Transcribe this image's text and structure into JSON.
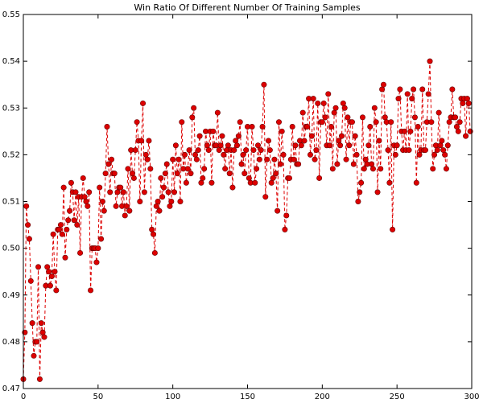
{
  "chart_data": {
    "type": "line",
    "title": "Win Ratio Of Different Number Of Training Samples",
    "xlim": [
      0,
      300
    ],
    "xticks": [
      0,
      50,
      100,
      150,
      200,
      250,
      300
    ],
    "ylim": [
      0.47,
      0.55
    ],
    "yticks": [
      0.47,
      0.48,
      0.49,
      {
        "value": 0.5,
        "label": "0.50"
      },
      0.51,
      0.52,
      0.53,
      0.54,
      0.55
    ],
    "grid": false,
    "x": [
      0,
      1,
      2,
      3,
      4,
      5,
      6,
      7,
      8,
      9,
      10,
      11,
      12,
      13,
      14,
      15,
      16,
      17,
      18,
      19,
      20,
      21,
      22,
      23,
      24,
      25,
      26,
      27,
      28,
      29,
      30,
      31,
      32,
      33,
      34,
      35,
      36,
      37,
      38,
      39,
      40,
      41,
      42,
      43,
      44,
      45,
      46,
      47,
      48,
      49,
      50,
      51,
      52,
      53,
      54,
      55,
      56,
      57,
      58,
      59,
      60,
      61,
      62,
      63,
      64,
      65,
      66,
      67,
      68,
      69,
      70,
      71,
      72,
      73,
      74,
      75,
      76,
      77,
      78,
      79,
      80,
      81,
      82,
      83,
      84,
      85,
      86,
      87,
      88,
      89,
      90,
      91,
      92,
      93,
      94,
      95,
      96,
      97,
      98,
      99,
      100,
      101,
      102,
      103,
      104,
      105,
      106,
      107,
      108,
      109,
      110,
      111,
      112,
      113,
      114,
      115,
      116,
      117,
      118,
      119,
      120,
      121,
      122,
      123,
      124,
      125,
      126,
      127,
      128,
      129,
      130,
      131,
      132,
      133,
      134,
      135,
      136,
      137,
      138,
      139,
      140,
      141,
      142,
      143,
      144,
      145,
      146,
      147,
      148,
      149,
      150,
      151,
      152,
      153,
      154,
      155,
      156,
      157,
      158,
      159,
      160,
      161,
      162,
      163,
      164,
      165,
      166,
      167,
      168,
      169,
      170,
      171,
      172,
      173,
      174,
      175,
      176,
      177,
      178,
      179,
      180,
      181,
      182,
      183,
      184,
      185,
      186,
      187,
      188,
      189,
      190,
      191,
      192,
      193,
      194,
      195,
      196,
      197,
      198,
      199,
      200,
      201,
      202,
      203,
      204,
      205,
      206,
      207,
      208,
      209,
      210,
      211,
      212,
      213,
      214,
      215,
      216,
      217,
      218,
      219,
      220,
      221,
      222,
      223,
      224,
      225,
      226,
      227,
      228,
      229,
      230,
      231,
      232,
      233,
      234,
      235,
      236,
      237,
      238,
      239,
      240,
      241,
      242,
      243,
      244,
      245,
      246,
      247,
      248,
      249,
      250,
      251,
      252,
      253,
      254,
      255,
      256,
      257,
      258,
      259,
      260,
      261,
      262,
      263,
      264,
      265,
      266,
      267,
      268,
      269,
      270,
      271,
      272,
      273,
      274,
      275,
      276,
      277,
      278,
      279,
      280,
      281,
      282,
      283,
      284,
      285,
      286,
      287,
      288,
      289,
      290,
      291,
      292,
      293,
      294,
      295,
      296,
      297,
      298,
      299
    ],
    "series": [
      {
        "color": "#dd0000",
        "values": [
          0.472,
          0.482,
          0.509,
          0.505,
          0.502,
          0.493,
          0.484,
          0.477,
          0.48,
          0.48,
          0.496,
          0.472,
          0.484,
          0.482,
          0.481,
          0.492,
          0.496,
          0.495,
          0.492,
          0.494,
          0.503,
          0.495,
          0.491,
          0.504,
          0.504,
          0.505,
          0.503,
          0.513,
          0.498,
          0.504,
          0.506,
          0.508,
          0.514,
          0.512,
          0.506,
          0.512,
          0.505,
          0.511,
          0.499,
          0.511,
          0.515,
          0.511,
          0.51,
          0.509,
          0.512,
          0.491,
          0.5,
          0.5,
          0.5,
          0.497,
          0.5,
          0.513,
          0.502,
          0.51,
          0.508,
          0.516,
          0.526,
          0.518,
          0.512,
          0.519,
          0.516,
          0.516,
          0.509,
          0.512,
          0.513,
          0.513,
          0.509,
          0.512,
          0.507,
          0.509,
          0.517,
          0.508,
          0.521,
          0.516,
          0.515,
          0.521,
          0.527,
          0.523,
          0.51,
          0.523,
          0.531,
          0.512,
          0.52,
          0.519,
          0.523,
          0.517,
          0.504,
          0.503,
          0.499,
          0.509,
          0.51,
          0.508,
          0.515,
          0.511,
          0.513,
          0.516,
          0.518,
          0.512,
          0.509,
          0.51,
          0.519,
          0.512,
          0.522,
          0.516,
          0.519,
          0.51,
          0.527,
          0.517,
          0.52,
          0.514,
          0.517,
          0.521,
          0.516,
          0.528,
          0.53,
          0.52,
          0.519,
          0.521,
          0.524,
          0.514,
          0.515,
          0.517,
          0.525,
          0.522,
          0.521,
          0.525,
          0.514,
          0.525,
          0.522,
          0.522,
          0.529,
          0.521,
          0.522,
          0.524,
          0.52,
          0.517,
          0.521,
          0.522,
          0.516,
          0.521,
          0.513,
          0.521,
          0.523,
          0.522,
          0.524,
          0.527,
          0.518,
          0.52,
          0.516,
          0.521,
          0.526,
          0.515,
          0.514,
          0.526,
          0.521,
          0.514,
          0.517,
          0.522,
          0.519,
          0.521,
          0.526,
          0.535,
          0.511,
          0.519,
          0.523,
          0.521,
          0.514,
          0.515,
          0.519,
          0.516,
          0.508,
          0.527,
          0.518,
          0.525,
          0.52,
          0.504,
          0.507,
          0.515,
          0.515,
          0.519,
          0.526,
          0.519,
          0.522,
          0.518,
          0.518,
          0.523,
          0.522,
          0.529,
          0.523,
          0.526,
          0.526,
          0.532,
          0.52,
          0.524,
          0.532,
          0.519,
          0.521,
          0.531,
          0.515,
          0.527,
          0.527,
          0.531,
          0.528,
          0.522,
          0.533,
          0.522,
          0.526,
          0.517,
          0.529,
          0.53,
          0.518,
          0.523,
          0.522,
          0.524,
          0.531,
          0.53,
          0.519,
          0.528,
          0.522,
          0.527,
          0.527,
          0.518,
          0.524,
          0.52,
          0.51,
          0.512,
          0.514,
          0.528,
          0.517,
          0.519,
          0.518,
          0.522,
          0.526,
          0.518,
          0.517,
          0.53,
          0.527,
          0.512,
          0.523,
          0.517,
          0.534,
          0.535,
          0.528,
          0.527,
          0.521,
          0.514,
          0.527,
          0.504,
          0.522,
          0.52,
          0.522,
          0.532,
          0.534,
          0.525,
          0.521,
          0.525,
          0.521,
          0.533,
          0.521,
          0.525,
          0.532,
          0.534,
          0.528,
          0.514,
          0.526,
          0.52,
          0.521,
          0.534,
          0.521,
          0.521,
          0.527,
          0.533,
          0.54,
          0.527,
          0.517,
          0.52,
          0.522,
          0.521,
          0.529,
          0.522,
          0.523,
          0.521,
          0.52,
          0.517,
          0.522,
          0.527,
          0.528,
          0.534,
          0.528,
          0.528,
          0.526,
          0.525,
          0.527,
          0.532,
          0.531,
          0.532,
          0.524,
          0.532,
          0.531,
          0.525
        ]
      }
    ]
  }
}
